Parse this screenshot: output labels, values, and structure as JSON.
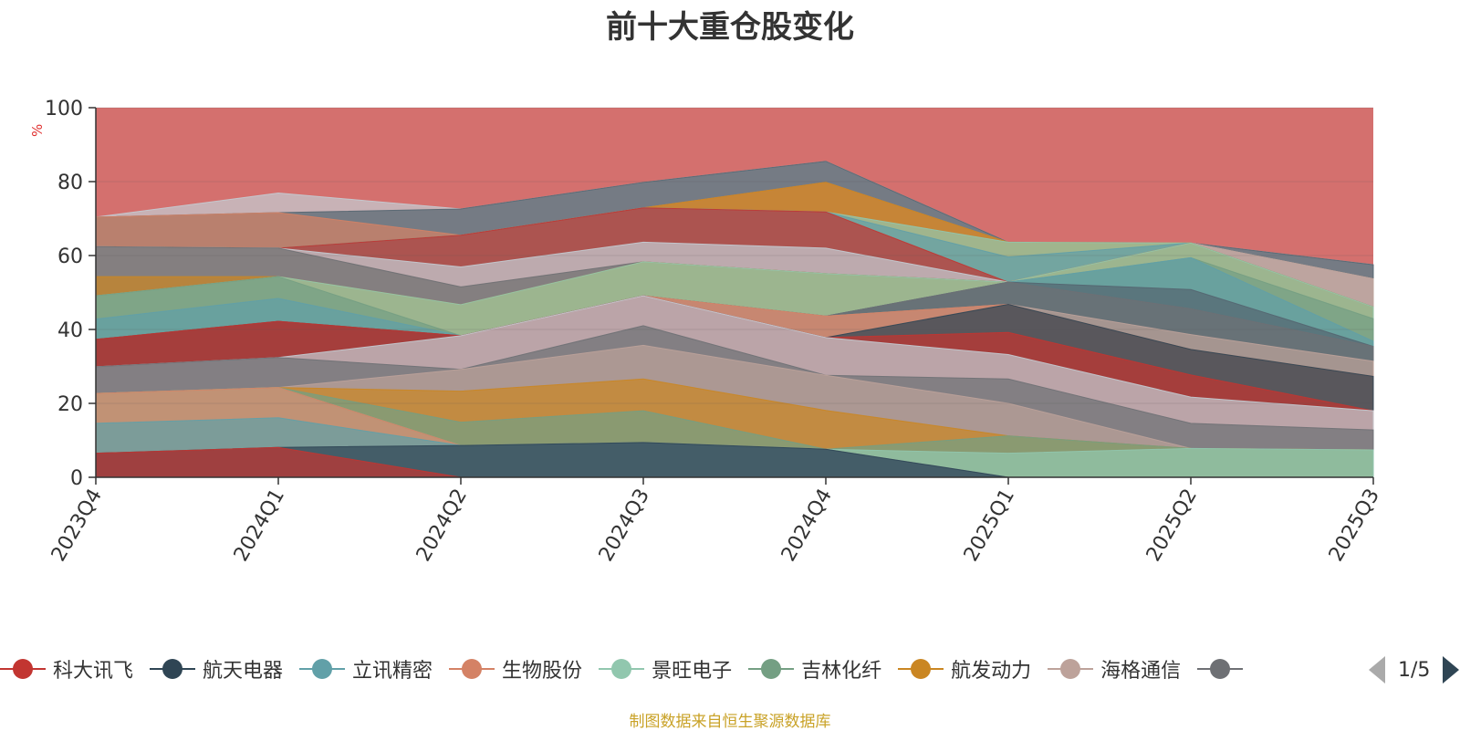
{
  "title": "前十大重仓股变化",
  "y_unit": "%",
  "source_note": "制图数据来自恒生聚源数据库",
  "pager": {
    "text": "1/5"
  },
  "colors": {
    "stack": [
      "#c23531",
      "#2f4554",
      "#61a0a8",
      "#d48265",
      "#91c7ae",
      "#749f83",
      "#ca8622",
      "#bda29a",
      "#6e7074",
      "#546570",
      "#c4ccd3"
    ],
    "top_fill": "#d4706e"
  },
  "chart_data": {
    "type": "area",
    "stacked": true,
    "categories": [
      "2023Q4",
      "2024Q1",
      "2024Q2",
      "2024Q3",
      "2024Q4",
      "2025Q1",
      "2025Q2",
      "2025Q3"
    ],
    "ylim": [
      0,
      100
    ],
    "yticks": [
      0,
      20,
      40,
      60,
      80,
      100
    ],
    "ylabel": "%",
    "grid": true,
    "legend_position": "bottom",
    "legend_visible": [
      "科大讯飞",
      "航天电器",
      "立讯精密",
      "生物股份",
      "景旺电子",
      "吉林化纤",
      "航发动力",
      "海格通信",
      ""
    ],
    "layers": [
      {
        "color": "#c23531",
        "tops": [
          6.5,
          8.1,
          0.0,
          0.0,
          0.0,
          0.0,
          0.0,
          0.0
        ]
      },
      {
        "color": "#2f4554",
        "tops": [
          6.5,
          8.1,
          8.6,
          9.4,
          7.6,
          0.0,
          0.0,
          0.0
        ]
      },
      {
        "color": "#61a0a8",
        "tops": [
          14.6,
          16.1,
          8.6,
          9.4,
          7.6,
          0.0,
          0.0,
          0.0
        ]
      },
      {
        "color": "#d48265",
        "tops": [
          22.7,
          24.3,
          8.6,
          9.4,
          7.6,
          0.0,
          0.0,
          0.0
        ]
      },
      {
        "color": "#91c7ae",
        "tops": [
          22.7,
          24.3,
          8.6,
          9.4,
          7.6,
          6.5,
          7.8,
          7.4
        ]
      },
      {
        "color": "#749f83",
        "tops": [
          22.7,
          24.3,
          14.9,
          18.0,
          7.6,
          11.2,
          7.8,
          7.4
        ]
      },
      {
        "color": "#ca8622",
        "tops": [
          22.7,
          24.3,
          23.3,
          26.6,
          18.1,
          11.2,
          7.8,
          7.4
        ]
      },
      {
        "color": "#bda29a",
        "tops": [
          22.7,
          24.3,
          29.2,
          35.7,
          27.6,
          20.0,
          7.8,
          7.4
        ]
      },
      {
        "color": "#6e7074",
        "tops": [
          29.9,
          32.4,
          29.2,
          41.0,
          27.6,
          26.6,
          14.6,
          12.8
        ]
      },
      {
        "color": "#c4ccd3",
        "tops": [
          29.9,
          32.4,
          38.3,
          49.1,
          37.8,
          33.2,
          21.7,
          18.0
        ]
      },
      {
        "color": "#c23531",
        "tops": [
          37.3,
          42.2,
          38.3,
          49.1,
          37.8,
          39.2,
          27.7,
          18.0
        ]
      },
      {
        "color": "#2f4554",
        "tops": [
          37.3,
          42.2,
          38.3,
          49.1,
          37.8,
          46.8,
          34.6,
          27.3
        ]
      },
      {
        "color": "#d48265",
        "tops": [
          37.3,
          42.2,
          38.3,
          49.1,
          43.6,
          46.8,
          34.6,
          27.3
        ]
      },
      {
        "color": "#bda29a",
        "tops": [
          37.3,
          42.2,
          38.3,
          49.1,
          43.6,
          46.8,
          38.6,
          31.4
        ]
      },
      {
        "color": "#6e7074",
        "tops": [
          37.3,
          42.2,
          38.3,
          49.1,
          43.6,
          52.8,
          45.6,
          35.4
        ]
      },
      {
        "color": "#546570",
        "tops": [
          37.3,
          42.2,
          38.3,
          49.1,
          43.6,
          52.8,
          50.8,
          35.4
        ]
      },
      {
        "color": "#61a0a8",
        "tops": [
          42.8,
          48.4,
          38.3,
          49.1,
          43.6,
          52.8,
          59.4,
          36.8
        ]
      },
      {
        "color": "#749f83",
        "tops": [
          49.1,
          54.3,
          38.3,
          49.1,
          43.6,
          52.8,
          59.4,
          42.9
        ]
      },
      {
        "color": "#91c7ae",
        "tops": [
          49.1,
          54.3,
          46.7,
          58.3,
          55.1,
          52.8,
          63.4,
          46.1
        ]
      },
      {
        "color": "#ca8622",
        "tops": [
          54.3,
          54.3,
          46.7,
          58.3,
          55.1,
          52.8,
          63.4,
          46.1
        ]
      },
      {
        "color": "#6e7074",
        "tops": [
          62.4,
          62.0,
          51.5,
          58.3,
          55.1,
          52.8,
          63.4,
          46.1
        ]
      },
      {
        "color": "#bda29a",
        "tops": [
          62.4,
          62.0,
          51.5,
          58.3,
          55.1,
          52.8,
          63.4,
          53.7
        ]
      },
      {
        "color": "#c4ccd3",
        "tops": [
          62.4,
          62.0,
          56.9,
          63.6,
          62.0,
          52.8,
          63.4,
          53.7
        ]
      },
      {
        "color": "#c23531",
        "tops": [
          62.4,
          62.0,
          65.5,
          72.9,
          71.8,
          52.8,
          63.4,
          53.7
        ]
      },
      {
        "color": "#61a0a8",
        "tops": [
          62.4,
          62.0,
          65.5,
          72.9,
          71.8,
          59.6,
          63.4,
          53.7
        ]
      },
      {
        "color": "#91c7ae",
        "tops": [
          62.4,
          62.0,
          65.5,
          72.9,
          71.8,
          63.6,
          63.4,
          53.7
        ]
      },
      {
        "color": "#ca8622",
        "tops": [
          62.4,
          62.0,
          65.5,
          72.9,
          79.8,
          63.6,
          63.4,
          53.7
        ]
      },
      {
        "color": "#d48265",
        "tops": [
          70.4,
          71.6,
          65.5,
          72.9,
          79.8,
          63.6,
          63.4,
          53.7
        ]
      },
      {
        "color": "#546570",
        "tops": [
          70.4,
          71.6,
          72.6,
          79.8,
          85.5,
          63.6,
          63.4,
          57.5
        ]
      },
      {
        "color": "#c4ccd3",
        "tops": [
          70.4,
          76.9,
          72.6,
          79.8,
          85.5,
          63.6,
          63.4,
          57.5
        ]
      }
    ]
  }
}
